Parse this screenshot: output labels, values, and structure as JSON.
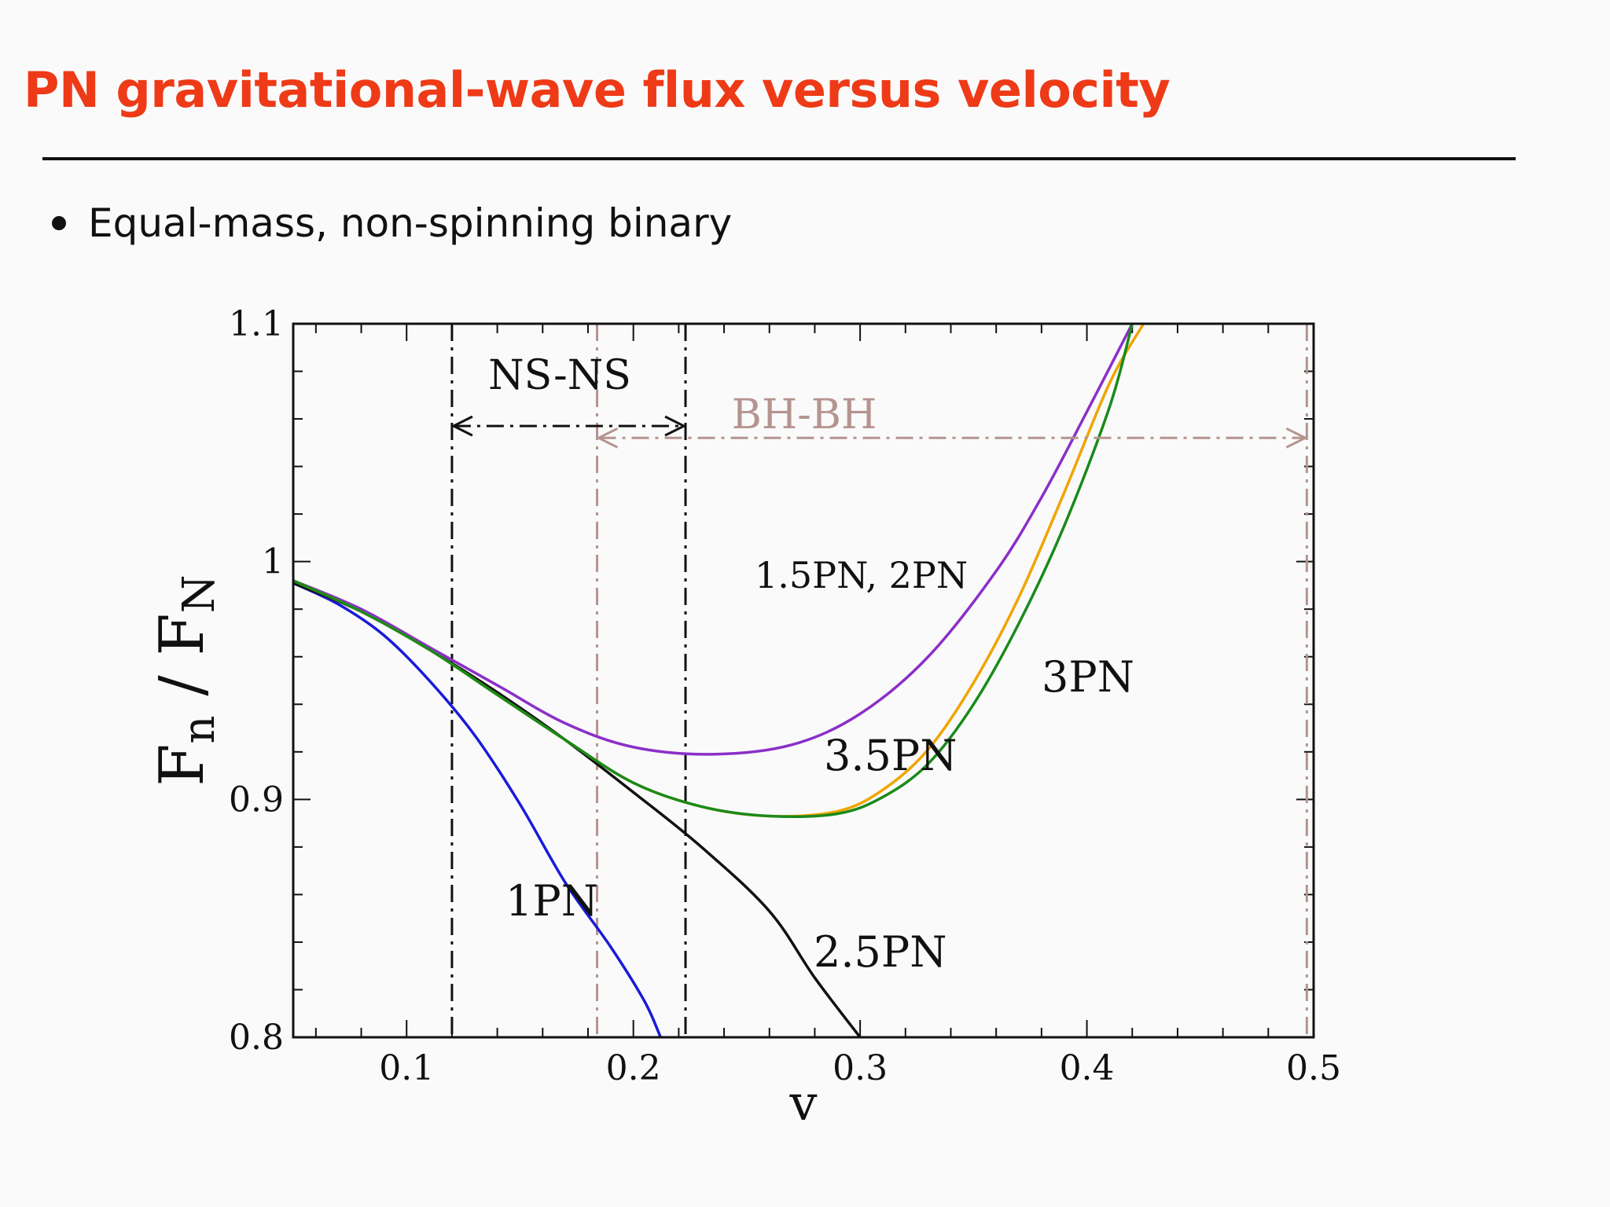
{
  "slide": {
    "title": "PN gravitational-wave flux versus velocity",
    "bullet": "Equal-mass, non-spinning binary"
  },
  "chart_data": {
    "type": "line",
    "title": "",
    "xlabel": "v",
    "ylabel_main": "F",
    "ylabel_sub_num": "n",
    "ylabel_sep": " / ",
    "ylabel_denom_main": "F",
    "ylabel_sub_den": "N",
    "xlim": [
      0.05,
      0.5
    ],
    "ylim": [
      0.8,
      1.1
    ],
    "xticks": [
      0.1,
      0.2,
      0.3,
      0.4,
      0.5
    ],
    "xtick_labels": [
      "0.1",
      "0.2",
      "0.3",
      "0.4",
      "0.5"
    ],
    "yticks": [
      0.8,
      0.9,
      1.0,
      1.1
    ],
    "ytick_labels": [
      "0.8",
      "0.9",
      "1",
      "1.1"
    ],
    "grid": false,
    "series": [
      {
        "label": "1PN",
        "color": "#1a1adb",
        "points": [
          [
            0.05,
            0.991
          ],
          [
            0.07,
            0.982
          ],
          [
            0.09,
            0.969
          ],
          [
            0.11,
            0.95
          ],
          [
            0.13,
            0.927
          ],
          [
            0.15,
            0.898
          ],
          [
            0.17,
            0.865
          ],
          [
            0.19,
            0.838
          ],
          [
            0.205,
            0.815
          ],
          [
            0.212,
            0.8
          ]
        ]
      },
      {
        "label": "2.5PN",
        "color": "#111111",
        "points": [
          [
            0.05,
            0.991
          ],
          [
            0.08,
            0.979
          ],
          [
            0.11,
            0.963
          ],
          [
            0.14,
            0.945
          ],
          [
            0.17,
            0.925
          ],
          [
            0.2,
            0.903
          ],
          [
            0.23,
            0.88
          ],
          [
            0.26,
            0.853
          ],
          [
            0.28,
            0.825
          ],
          [
            0.3,
            0.8
          ]
        ]
      },
      {
        "label": "1.5PN, 2PN",
        "color": "#8b2fc9",
        "points": [
          [
            0.05,
            0.992
          ],
          [
            0.08,
            0.98
          ],
          [
            0.11,
            0.964
          ],
          [
            0.14,
            0.948
          ],
          [
            0.17,
            0.932
          ],
          [
            0.2,
            0.922
          ],
          [
            0.235,
            0.919
          ],
          [
            0.27,
            0.923
          ],
          [
            0.3,
            0.936
          ],
          [
            0.33,
            0.96
          ],
          [
            0.36,
            0.996
          ],
          [
            0.38,
            1.027
          ],
          [
            0.4,
            1.063
          ],
          [
            0.42,
            1.1
          ]
        ]
      },
      {
        "label": "3.5PN",
        "color": "#f0a500",
        "points": [
          [
            0.05,
            0.992
          ],
          [
            0.08,
            0.979
          ],
          [
            0.11,
            0.963
          ],
          [
            0.14,
            0.944
          ],
          [
            0.17,
            0.925
          ],
          [
            0.2,
            0.907
          ],
          [
            0.23,
            0.897
          ],
          [
            0.26,
            0.893
          ],
          [
            0.29,
            0.895
          ],
          [
            0.31,
            0.904
          ],
          [
            0.33,
            0.921
          ],
          [
            0.35,
            0.949
          ],
          [
            0.37,
            0.985
          ],
          [
            0.39,
            1.029
          ],
          [
            0.41,
            1.075
          ],
          [
            0.425,
            1.1
          ]
        ]
      },
      {
        "label": "3PN",
        "color": "#1a8a1a",
        "points": [
          [
            0.05,
            0.992
          ],
          [
            0.08,
            0.979
          ],
          [
            0.11,
            0.963
          ],
          [
            0.14,
            0.944
          ],
          [
            0.17,
            0.925
          ],
          [
            0.2,
            0.907
          ],
          [
            0.23,
            0.897
          ],
          [
            0.26,
            0.893
          ],
          [
            0.29,
            0.894
          ],
          [
            0.31,
            0.901
          ],
          [
            0.33,
            0.915
          ],
          [
            0.35,
            0.94
          ],
          [
            0.37,
            0.974
          ],
          [
            0.39,
            1.015
          ],
          [
            0.41,
            1.065
          ],
          [
            0.42,
            1.1
          ]
        ]
      }
    ],
    "annotations": [
      {
        "text": "NS-NS",
        "color": "#111111",
        "vlines": [
          0.12,
          0.223
        ],
        "arrow_y": 1.057
      },
      {
        "text": "BH-BH",
        "color": "#b5948f",
        "vlines": [
          0.184,
          0.497
        ],
        "arrow_y": 1.052
      }
    ],
    "curve_labels": [
      "1.5PN, 2PN",
      "3PN",
      "3.5PN",
      "1PN",
      "2.5PN"
    ]
  }
}
